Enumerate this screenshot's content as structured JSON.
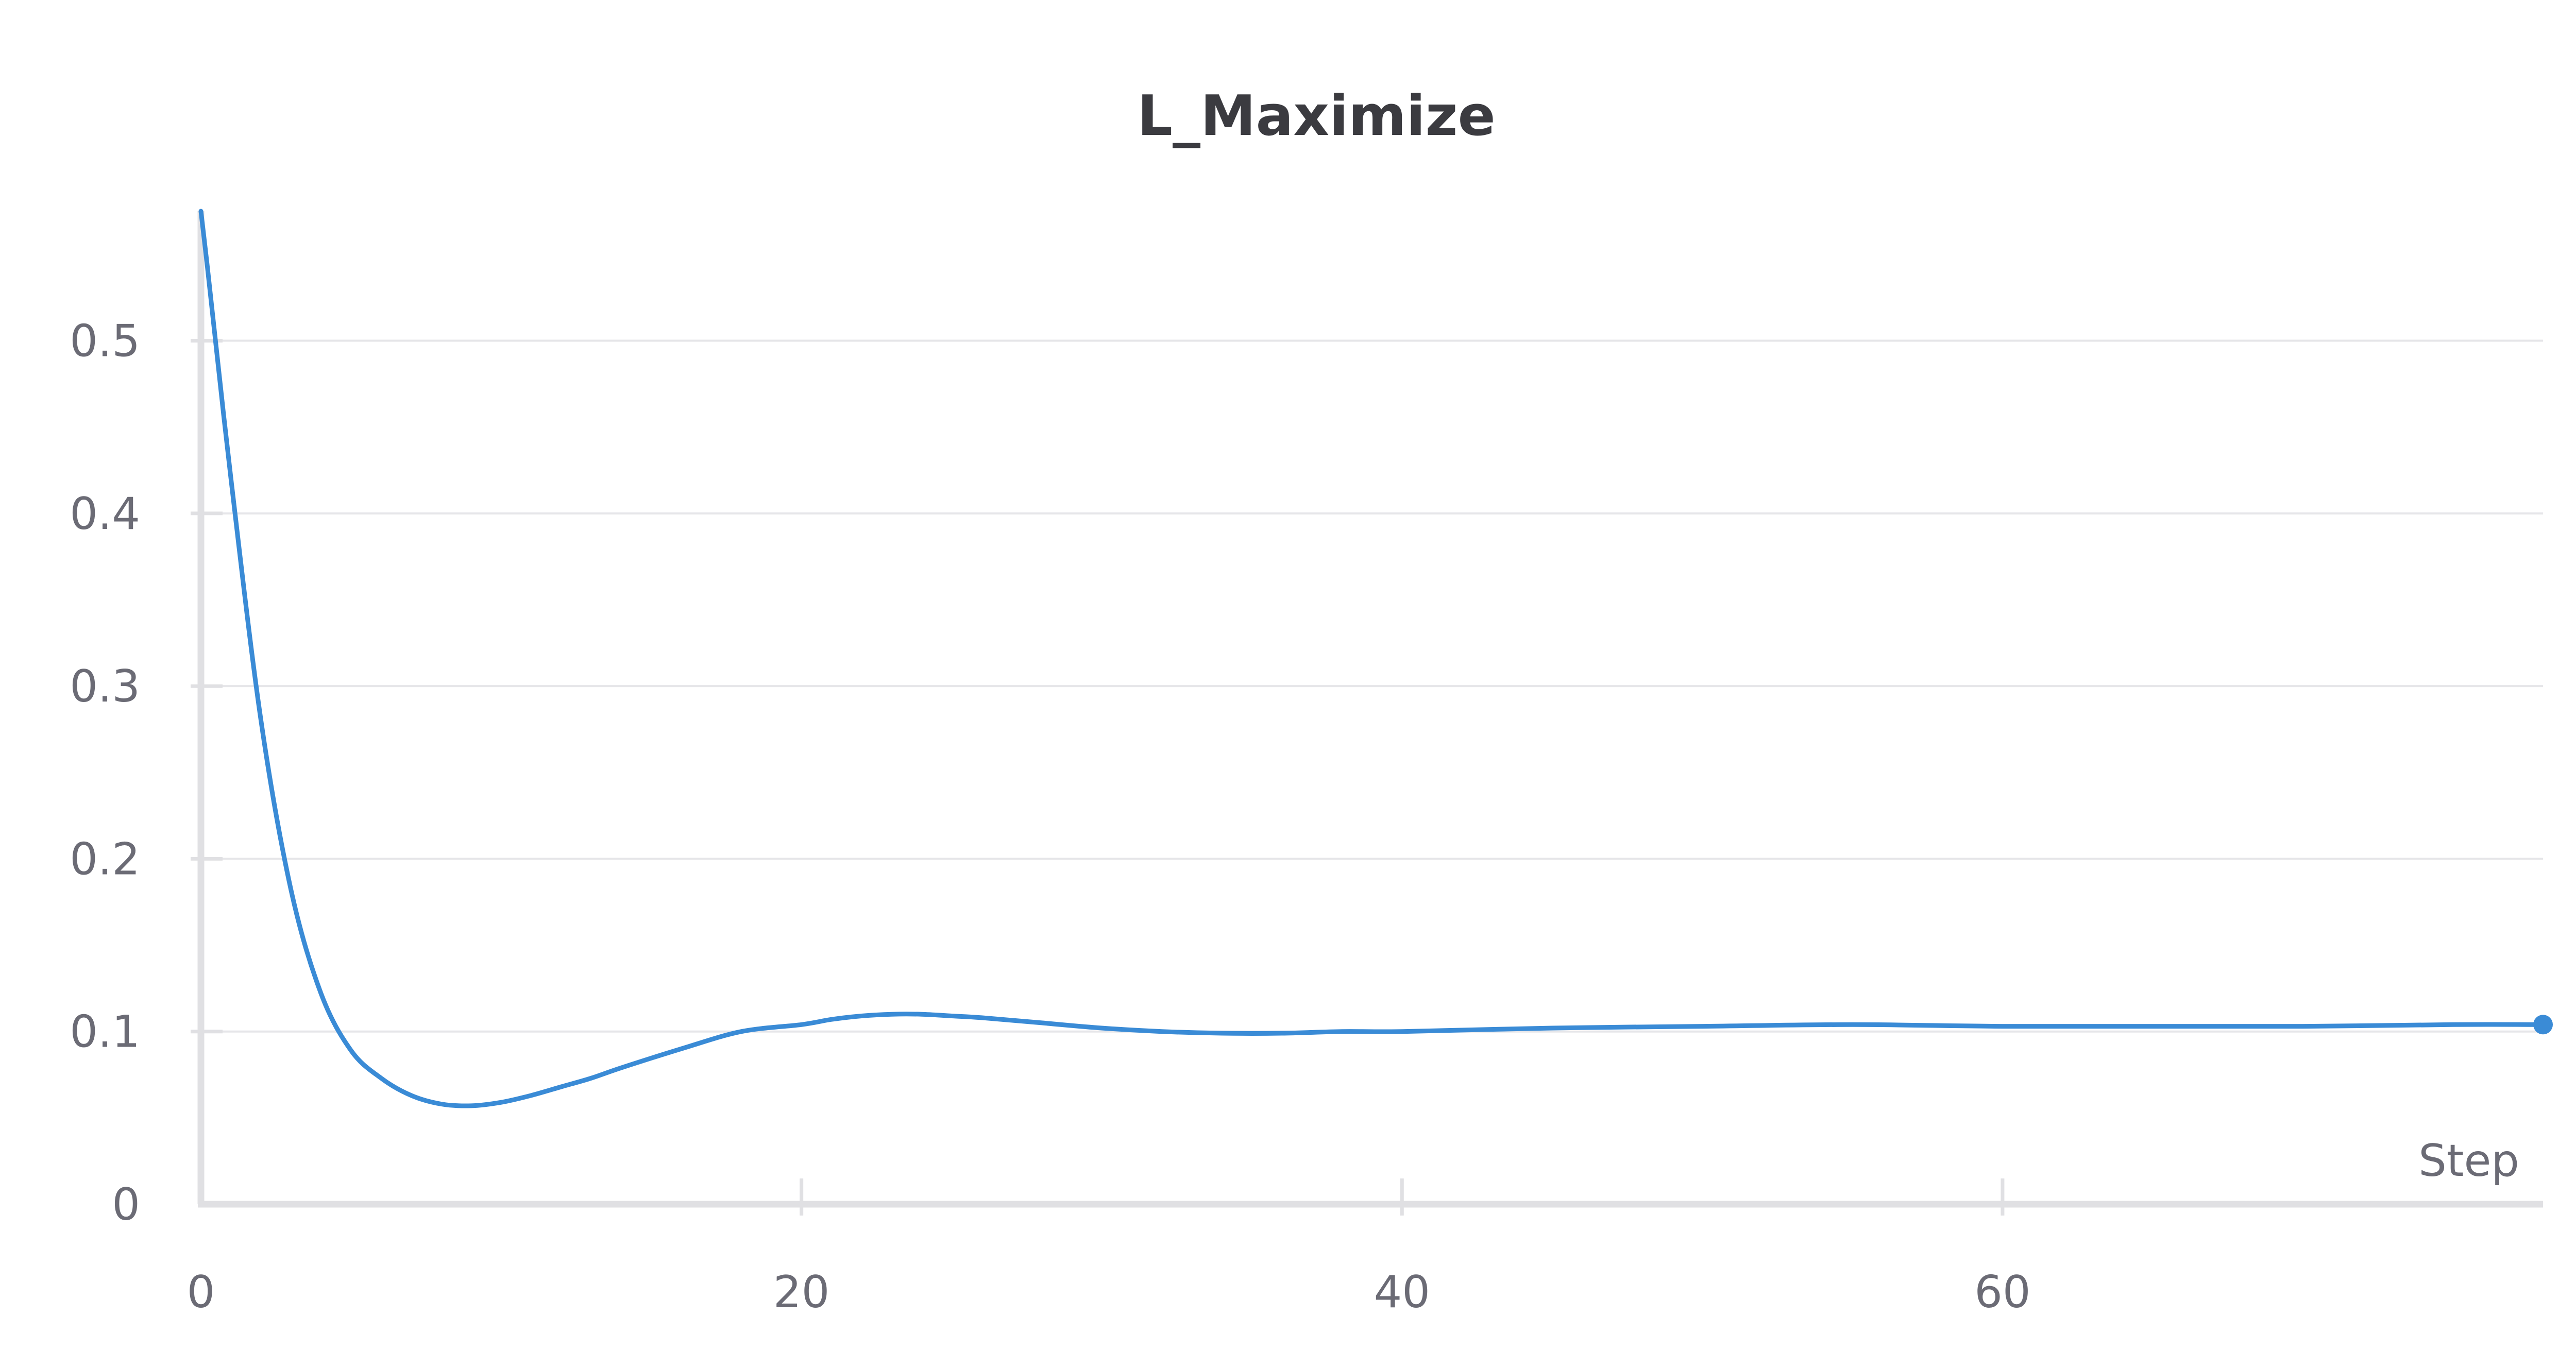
{
  "chart_data": {
    "type": "line",
    "title": "L_Maximize",
    "xlabel": "Step",
    "ylabel": "",
    "xlim": [
      0,
      78
    ],
    "ylim": [
      0,
      0.575
    ],
    "x_ticks": [
      0,
      20,
      40,
      60
    ],
    "y_ticks": [
      0,
      0.1,
      0.2,
      0.3,
      0.4,
      0.5
    ],
    "x_tick_labels": [
      "0",
      "20",
      "40",
      "60"
    ],
    "y_tick_labels": [
      "0",
      "0.1",
      "0.2",
      "0.3",
      "0.4",
      "0.5"
    ],
    "grid": true,
    "legend": "none",
    "series": [
      {
        "color": "#3a8bd6",
        "x": [
          0,
          0.2,
          1,
          2,
          3,
          4,
          5,
          6,
          7,
          8,
          9,
          10,
          11,
          12,
          13,
          14,
          16,
          18,
          20,
          21,
          22,
          23,
          24,
          25,
          26,
          28,
          30,
          32,
          34,
          36,
          38,
          40,
          45,
          50,
          55,
          60,
          65,
          70,
          75,
          78
        ],
        "y": [
          0.575,
          0.545,
          0.42,
          0.28,
          0.182,
          0.122,
          0.089,
          0.073,
          0.063,
          0.058,
          0.057,
          0.059,
          0.063,
          0.068,
          0.073,
          0.079,
          0.09,
          0.1,
          0.104,
          0.107,
          0.109,
          0.11,
          0.11,
          0.109,
          0.108,
          0.105,
          0.102,
          0.1,
          0.099,
          0.099,
          0.1,
          0.1,
          0.102,
          0.103,
          0.104,
          0.103,
          0.103,
          0.103,
          0.104,
          0.104
        ]
      }
    ]
  }
}
